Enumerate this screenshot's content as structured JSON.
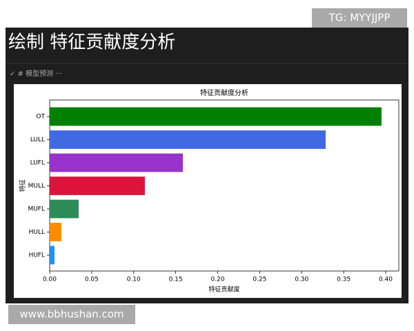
{
  "watermark_top": "TG: MYYJJPP",
  "header": {
    "title": "绘制 特征贡献度分析",
    "toolbar": "✓ # 模型预测 ···"
  },
  "watermark_bottom": "www.bbhushan.com",
  "chart_data": {
    "type": "barh",
    "title": "特征贡献度分析",
    "x_label": "特征贡献度",
    "y_label": "特征",
    "categories": [
      "OT",
      "LULL",
      "LUFL",
      "MULL",
      "MUFL",
      "HULL",
      "HUFL"
    ],
    "values": [
      0.395,
      0.3285,
      0.1585,
      0.1133,
      0.0345,
      0.014,
      0.0057
    ],
    "colors": [
      "#008000",
      "#4169e1",
      "#9932cc",
      "#dc143c",
      "#2e8b57",
      "#ff8c00",
      "#1e90ff"
    ],
    "xlim": [
      0,
      0.4156
    ],
    "xticks": [
      {
        "value": 0,
        "label": "0.00"
      },
      {
        "value": 0.05,
        "label": "0.05"
      },
      {
        "value": 0.1,
        "label": "0.10"
      },
      {
        "value": 0.15,
        "label": "0.15"
      },
      {
        "value": 0.2,
        "label": "0.20"
      },
      {
        "value": 0.25,
        "label": "0.25"
      },
      {
        "value": 0.3,
        "label": "0.30"
      },
      {
        "value": 0.35,
        "label": "0.35"
      },
      {
        "value": 0.4,
        "label": "0.40"
      }
    ]
  }
}
